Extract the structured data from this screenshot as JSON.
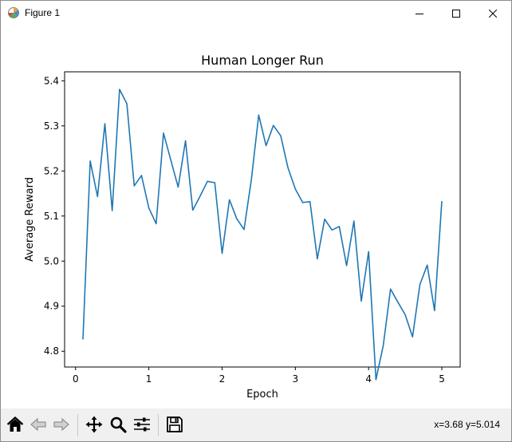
{
  "window": {
    "title": "Figure 1",
    "icons": {
      "app": "matplotlib-icon",
      "minimize": "minimize-icon",
      "maximize": "maximize-icon",
      "close": "close-icon"
    }
  },
  "toolbar": {
    "buttons": [
      {
        "name": "home-button",
        "icon": "home-icon"
      },
      {
        "name": "back-button",
        "icon": "back-arrow-icon"
      },
      {
        "name": "forward-button",
        "icon": "forward-arrow-icon"
      },
      {
        "name": "pan-button",
        "icon": "move-icon"
      },
      {
        "name": "zoom-button",
        "icon": "magnifier-icon"
      },
      {
        "name": "configure-subplots-button",
        "icon": "sliders-icon"
      },
      {
        "name": "save-button",
        "icon": "floppy-disk-icon"
      }
    ],
    "coords": "x=3.68 y=5.014"
  },
  "chart_data": {
    "type": "line",
    "title": "Human Longer Run",
    "xlabel": "Epoch",
    "ylabel": "Average Reward",
    "xlim": [
      -0.15,
      5.25
    ],
    "ylim": [
      4.765,
      5.42
    ],
    "xticks": [
      0,
      1,
      2,
      3,
      4,
      5
    ],
    "xtick_labels": [
      "0",
      "1",
      "2",
      "3",
      "4",
      "5"
    ],
    "yticks": [
      4.8,
      4.9,
      5.0,
      5.1,
      5.2,
      5.3,
      5.4
    ],
    "ytick_labels": [
      "4.8",
      "4.9",
      "5.0",
      "5.1",
      "5.2",
      "5.3",
      "5.4"
    ],
    "grid": false,
    "color": "#1f77b4",
    "series": [
      {
        "x": [
          0.1,
          0.2,
          0.3,
          0.4,
          0.5,
          0.6,
          0.7,
          0.8,
          0.9,
          1.0,
          1.1,
          1.2,
          1.3,
          1.4,
          1.5,
          1.6,
          1.7,
          1.8,
          1.9,
          2.0,
          2.1,
          2.2,
          2.3,
          2.4,
          2.5,
          2.6,
          2.7,
          2.8,
          2.9,
          3.0,
          3.1,
          3.2,
          3.3,
          3.4,
          3.5,
          3.6,
          3.7,
          3.8,
          3.9,
          4.0,
          4.1,
          4.2,
          4.3,
          4.4,
          4.5,
          4.6,
          4.7,
          4.8,
          4.9,
          5.0
        ],
        "values": [
          4.826,
          5.222,
          5.143,
          5.305,
          5.112,
          5.381,
          5.349,
          5.167,
          5.19,
          5.118,
          5.083,
          5.284,
          5.224,
          5.164,
          5.267,
          5.113,
          5.144,
          5.177,
          5.174,
          5.017,
          5.136,
          5.094,
          5.07,
          5.181,
          5.324,
          5.256,
          5.301,
          5.278,
          5.207,
          5.16,
          5.13,
          5.132,
          5.005,
          5.093,
          5.069,
          5.077,
          4.99,
          5.089,
          4.911,
          5.021,
          4.737,
          4.813,
          4.938,
          4.909,
          4.881,
          4.832,
          4.948,
          4.991,
          4.89,
          5.133
        ]
      }
    ]
  }
}
